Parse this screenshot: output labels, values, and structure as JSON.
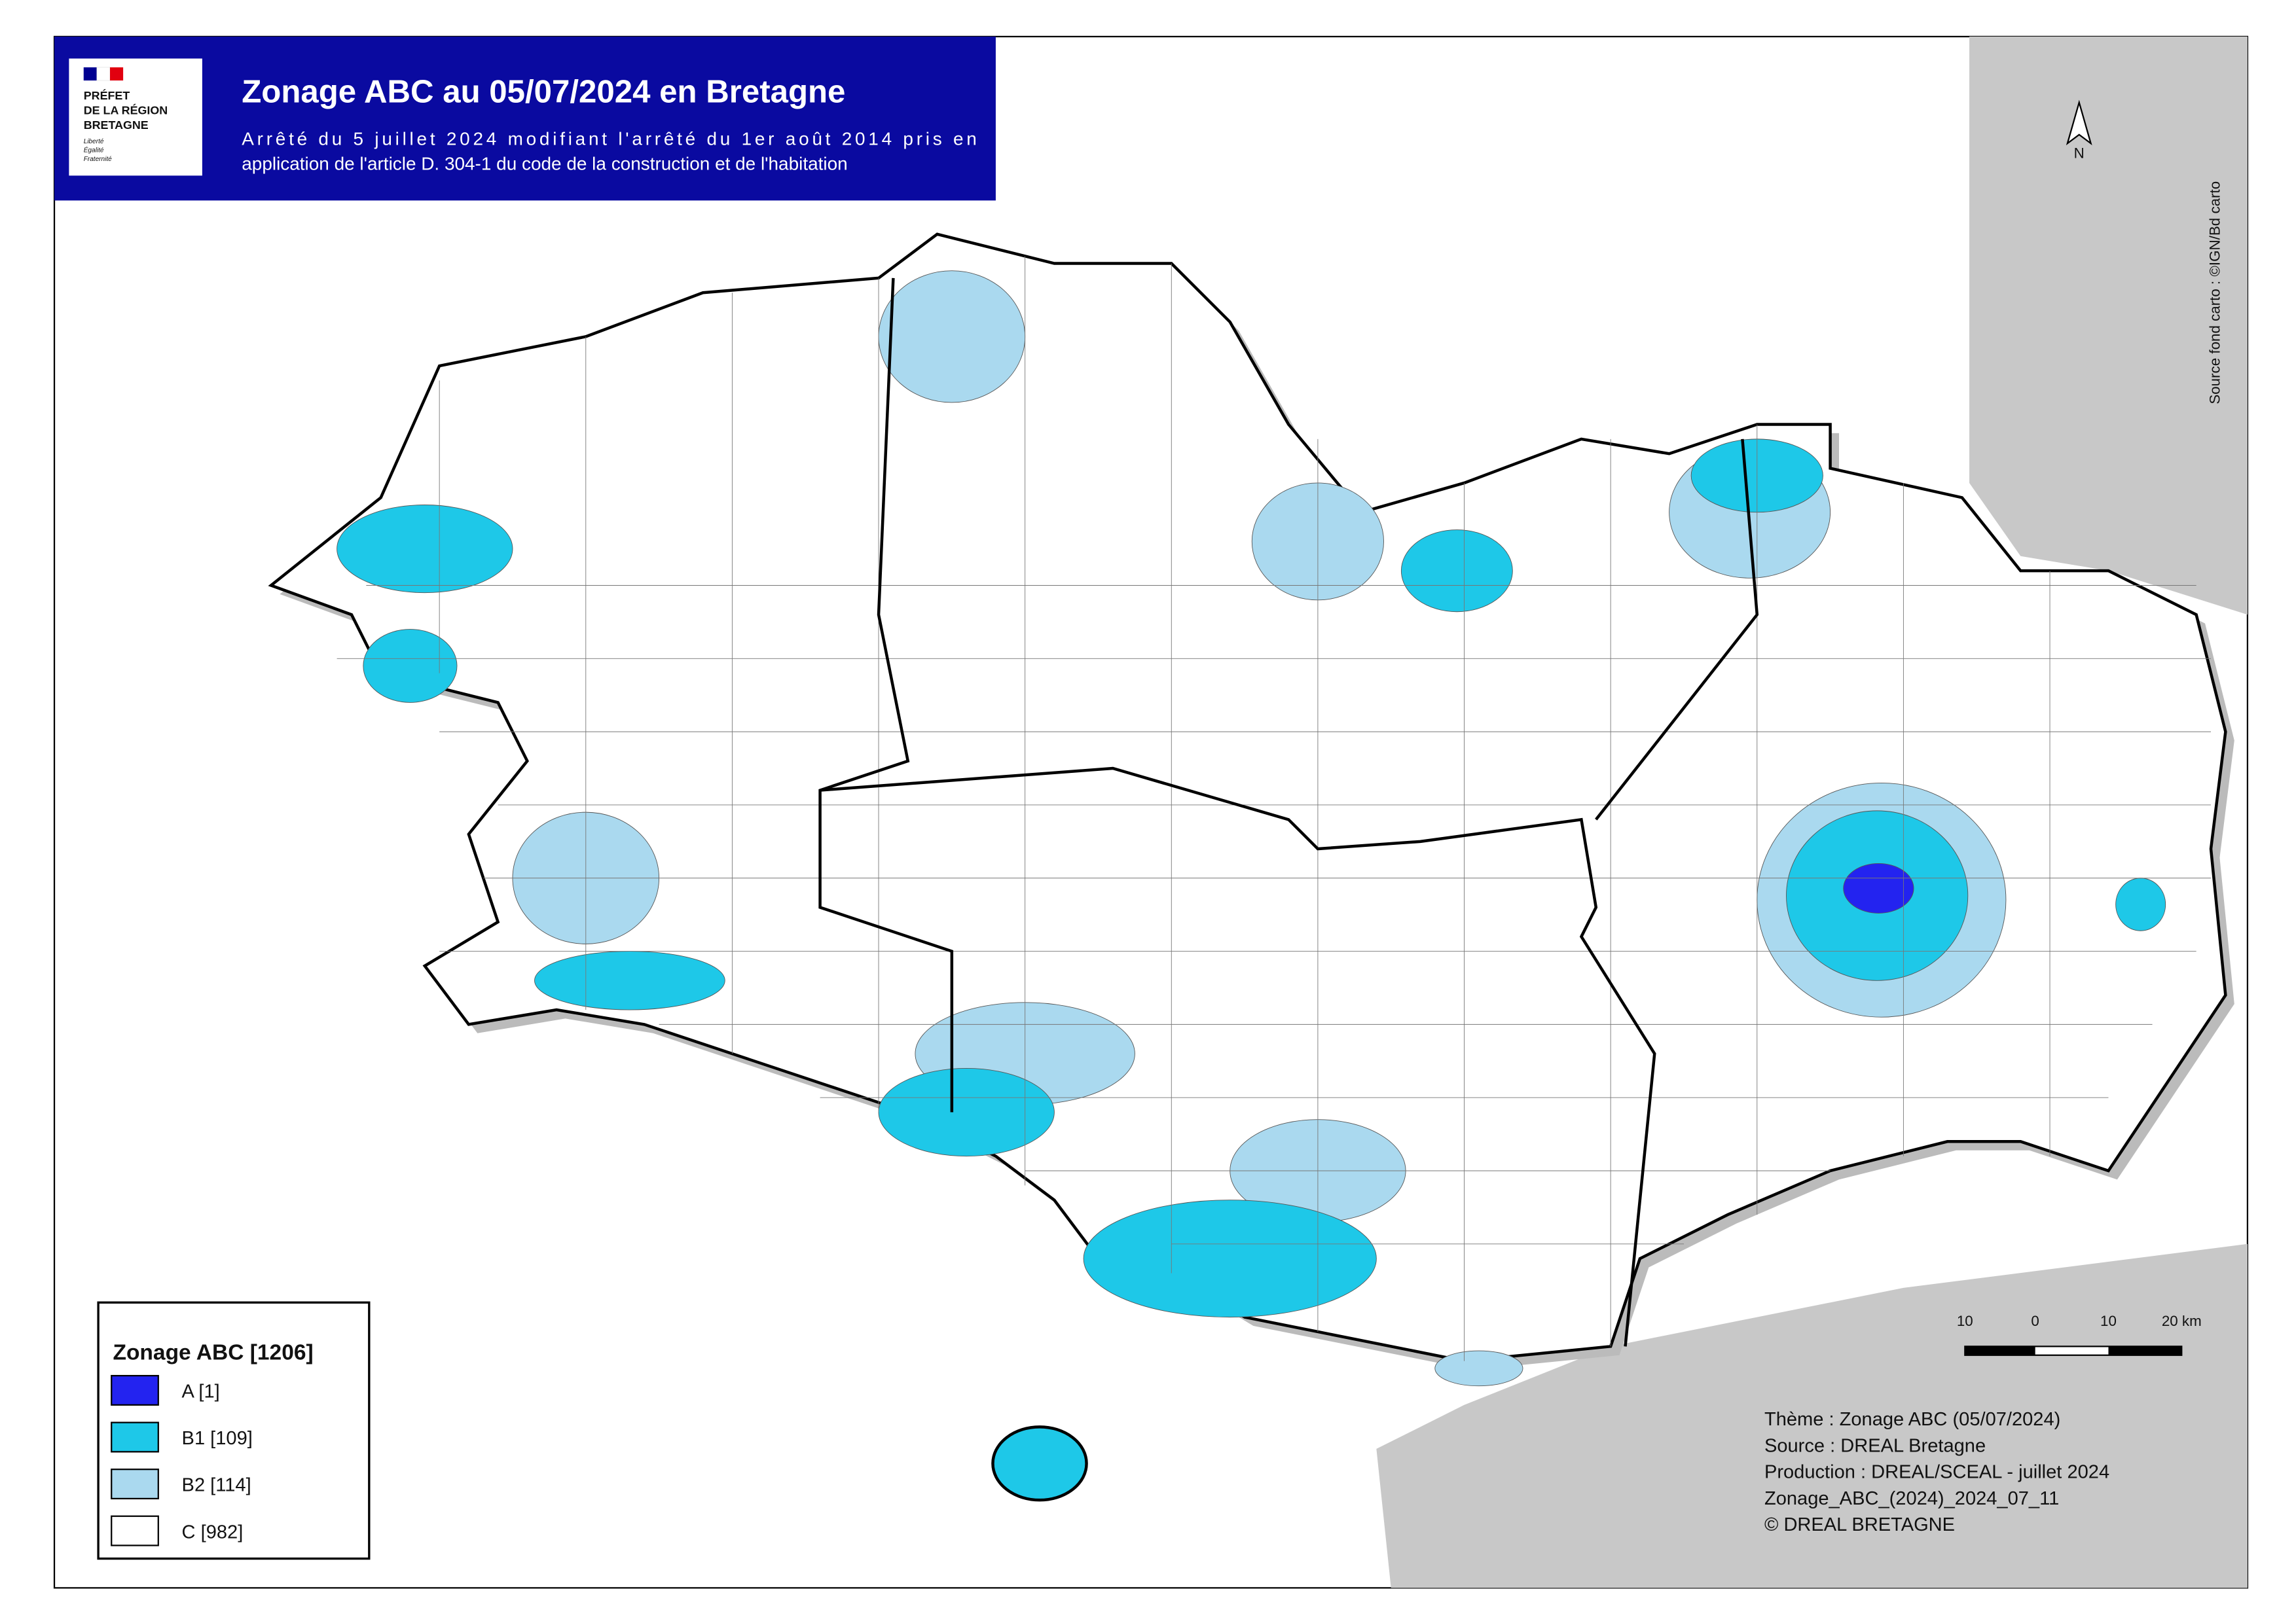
{
  "header": {
    "logo": [
      "PRÉFET",
      "DE LA RÉGION",
      "BRETAGNE"
    ],
    "motto": [
      "Liberté",
      "Égalité",
      "Fraternité"
    ],
    "title": "Zonage ABC au 05/07/2024 en Bretagne",
    "subtitle": [
      "Arrêté du 5 juillet 2024 modifiant l'arrêté du 1er août 2014 pris en",
      "application de l'article D. 304-1 du code de la construction et de l'habitation"
    ]
  },
  "north": "N",
  "source_note": "Source fond carto : ©IGN/Bd carto",
  "legend": {
    "title": "Zonage ABC [1206]",
    "items": [
      {
        "label": "A [1]",
        "color": "#2323f0"
      },
      {
        "label": "B1 [109]",
        "color": "#1ec8e8"
      },
      {
        "label": "B2 [114]",
        "color": "#aad9ef"
      },
      {
        "label": "C [982]",
        "color": "#ffffff"
      }
    ]
  },
  "scale": {
    "labels": [
      "10",
      "0",
      "10",
      "20 km"
    ]
  },
  "credits": [
    "Thème : Zonage ABC (05/07/2024)",
    "Source : DREAL Bretagne",
    "Production : DREAL/SCEAL - juillet 2024",
    "Zonage_ABC_(2024)_2024_07_11",
    "© DREAL BRETAGNE"
  ]
}
